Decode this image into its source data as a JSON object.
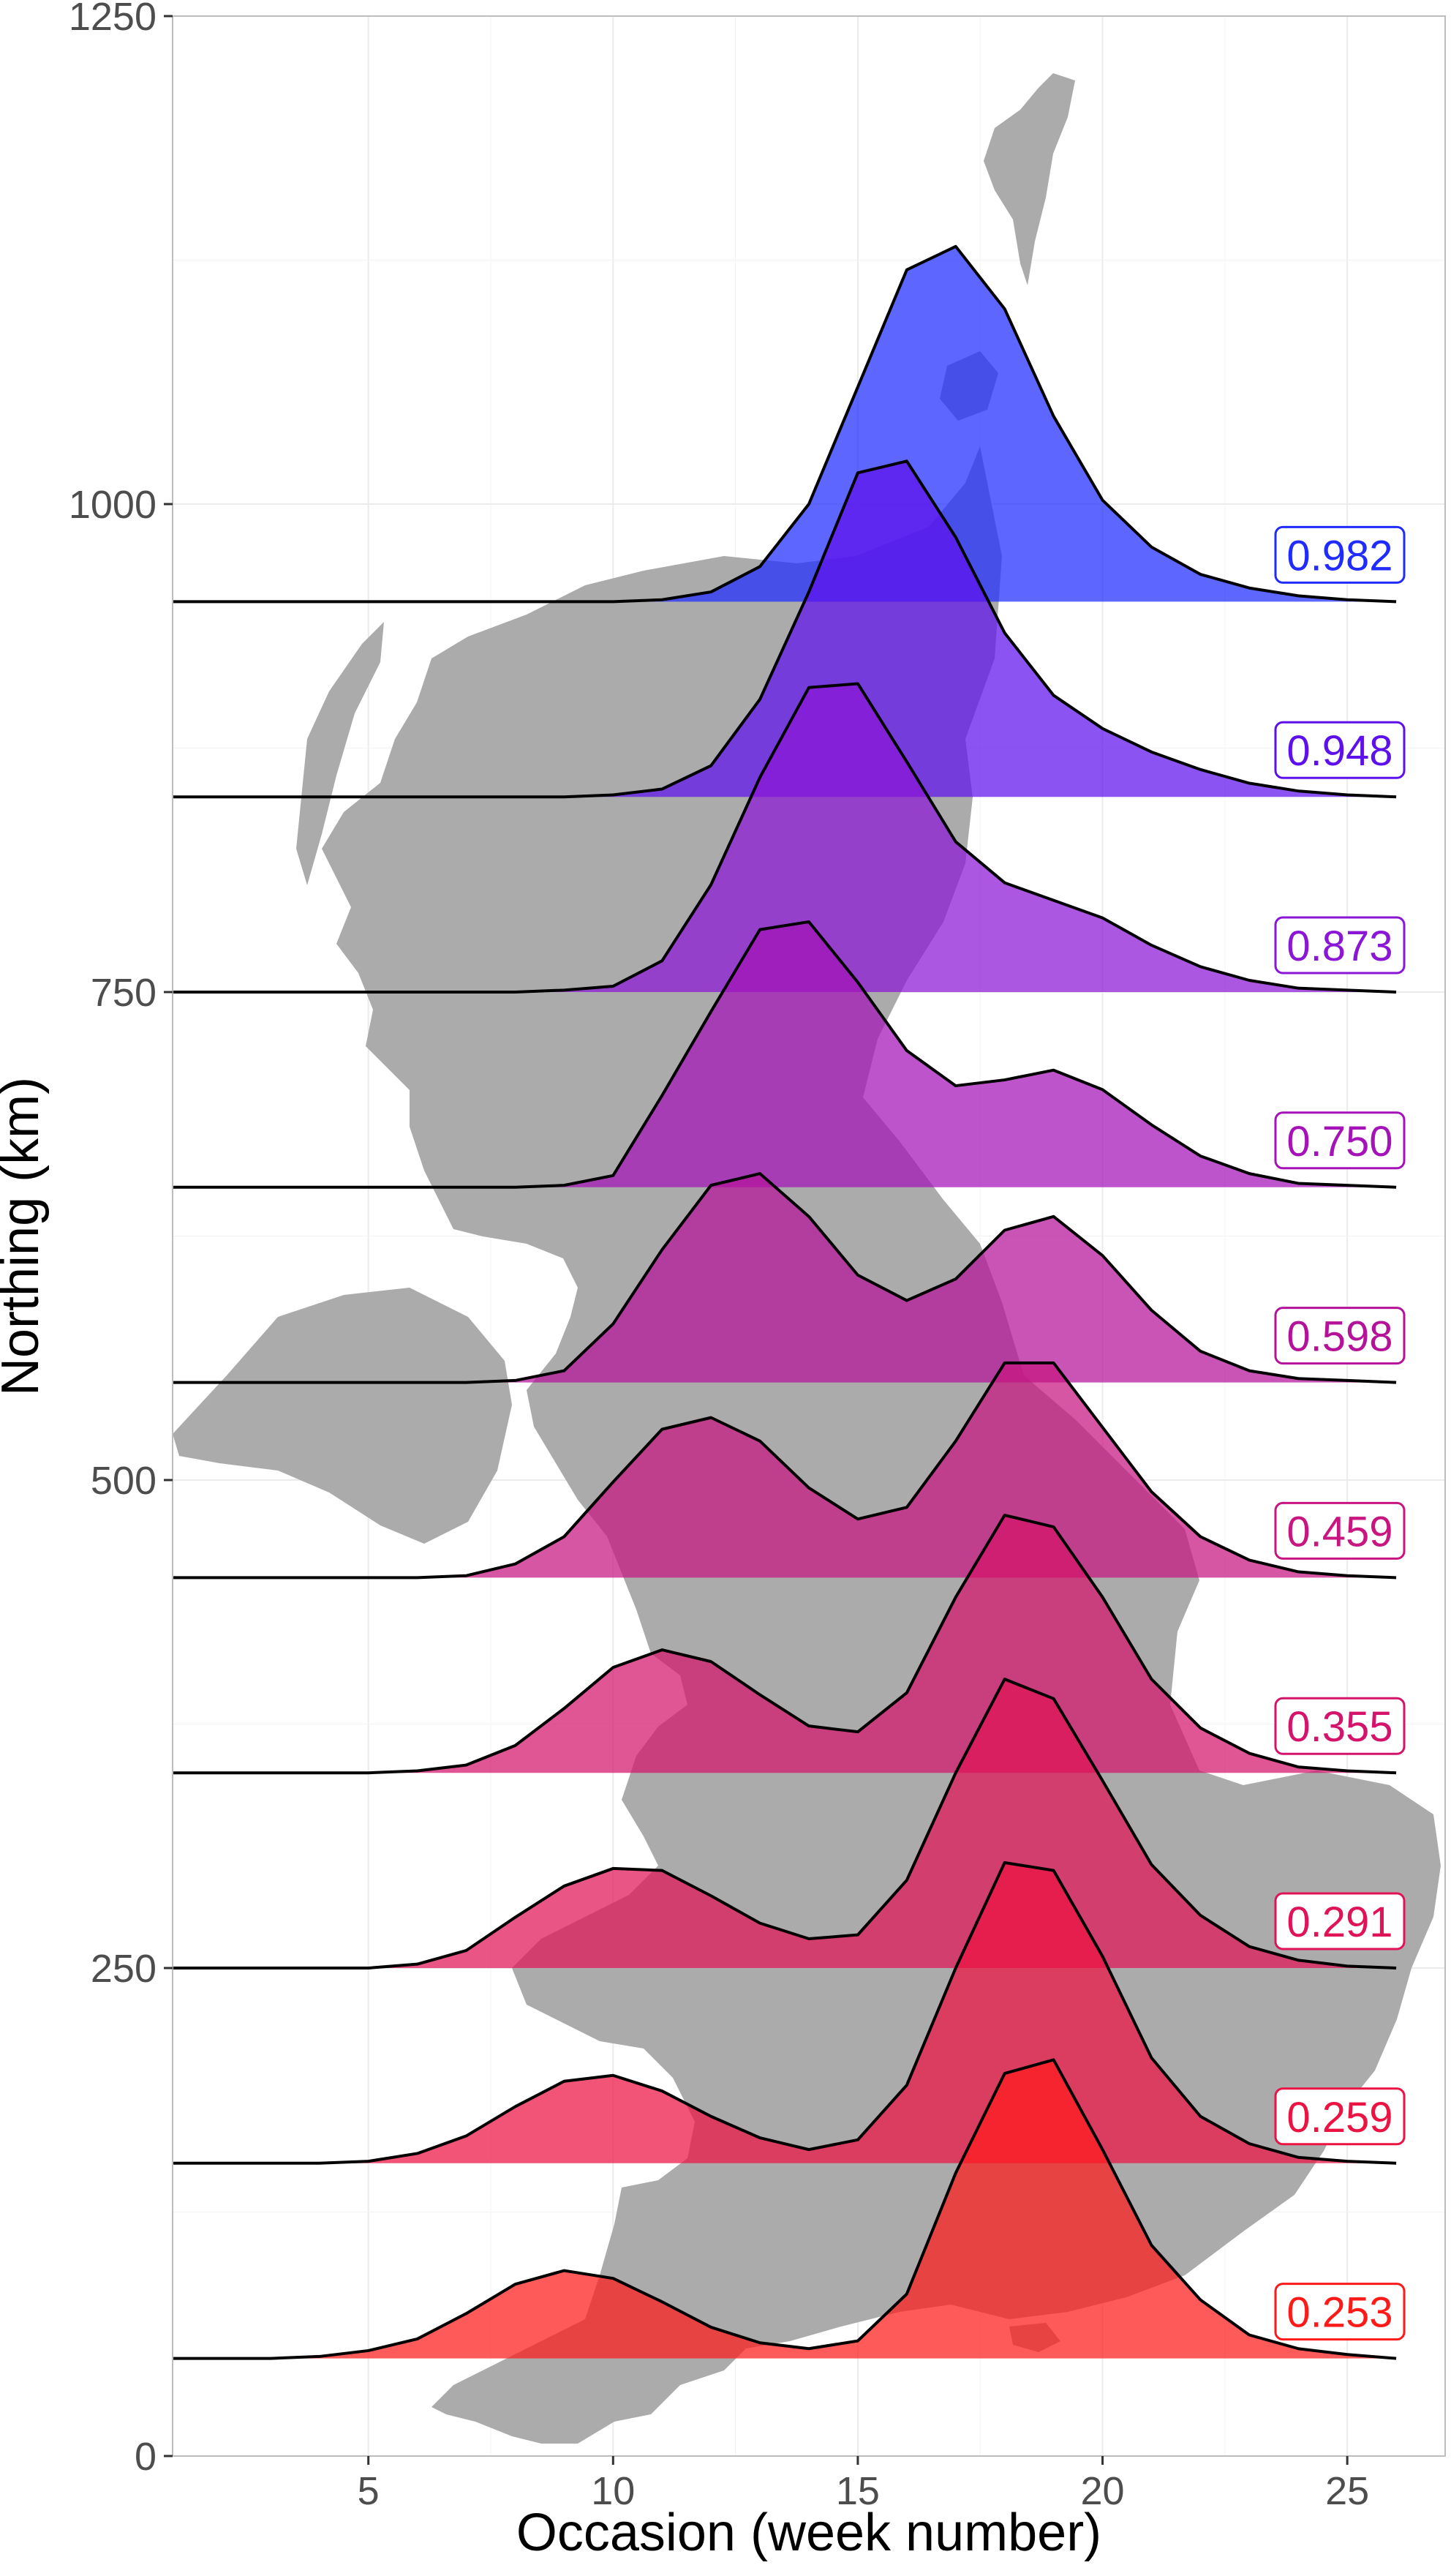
{
  "chart_data": {
    "type": "area",
    "title": "",
    "xlabel": "Occasion (week number)",
    "ylabel": "Northing (km)",
    "xlim": [
      1,
      27
    ],
    "ylim": [
      0,
      1250
    ],
    "x_ticks": [
      5,
      10,
      15,
      20,
      25
    ],
    "y_ticks": [
      0,
      250,
      500,
      750,
      1000,
      1250
    ],
    "grid": true,
    "background": "map of Great Britain (grey silhouette)",
    "x": [
      1,
      2,
      3,
      4,
      5,
      6,
      7,
      8,
      9,
      10,
      11,
      12,
      13,
      14,
      15,
      16,
      17,
      18,
      19,
      20,
      21,
      22,
      23,
      24,
      25,
      26
    ],
    "series": [
      {
        "label": "0.982",
        "color": "#1f2bff",
        "baseline": 950,
        "values": [
          950,
          950,
          950,
          950,
          950,
          950,
          950,
          950,
          950,
          950,
          951,
          955,
          968,
          1000,
          1060,
          1120,
          1132,
          1100,
          1045,
          1002,
          978,
          964,
          957,
          953,
          951,
          950
        ]
      },
      {
        "label": "0.948",
        "color": "#5e10ec",
        "baseline": 850,
        "values": [
          850,
          850,
          850,
          850,
          850,
          850,
          850,
          850,
          850,
          851,
          854,
          866,
          900,
          955,
          1016,
          1022,
          983,
          934,
          902,
          885,
          873,
          864,
          857,
          853,
          851,
          850
        ]
      },
      {
        "label": "0.873",
        "color": "#8a16d6",
        "baseline": 750,
        "values": [
          750,
          750,
          750,
          750,
          750,
          750,
          750,
          750,
          751,
          753,
          766,
          805,
          860,
          906,
          908,
          868,
          827,
          806,
          797,
          788,
          774,
          763,
          756,
          752,
          751,
          750
        ]
      },
      {
        "label": "0.750",
        "color": "#a412b8",
        "baseline": 650,
        "values": [
          650,
          650,
          650,
          650,
          650,
          650,
          650,
          650,
          651,
          656,
          697,
          740,
          782,
          786,
          755,
          720,
          702,
          705,
          710,
          700,
          682,
          666,
          657,
          652,
          651,
          650
        ]
      },
      {
        "label": "0.598",
        "color": "#b5129a",
        "baseline": 550,
        "values": [
          550,
          550,
          550,
          550,
          550,
          550,
          550,
          551,
          556,
          580,
          618,
          651,
          657,
          635,
          605,
          592,
          603,
          628,
          635,
          615,
          587,
          566,
          556,
          552,
          551,
          550
        ]
      },
      {
        "label": "0.459",
        "color": "#c81580",
        "baseline": 450,
        "values": [
          450,
          450,
          450,
          450,
          450,
          450,
          451,
          457,
          471,
          499,
          526,
          532,
          520,
          496,
          480,
          486,
          520,
          560,
          560,
          527,
          494,
          471,
          459,
          453,
          451,
          450
        ]
      },
      {
        "label": "0.355",
        "color": "#d4146a",
        "baseline": 350,
        "values": [
          350,
          350,
          350,
          350,
          350,
          351,
          354,
          364,
          383,
          404,
          413,
          407,
          390,
          374,
          371,
          391,
          440,
          482,
          476,
          440,
          398,
          373,
          360,
          353,
          351,
          350
        ]
      },
      {
        "label": "0.291",
        "color": "#e01356",
        "baseline": 250,
        "values": [
          250,
          250,
          250,
          250,
          250,
          252,
          259,
          276,
          292,
          301,
          300,
          287,
          273,
          265,
          267,
          295,
          350,
          398,
          388,
          346,
          303,
          277,
          261,
          254,
          251,
          250
        ]
      },
      {
        "label": "0.259",
        "color": "#ec1242",
        "baseline": 150,
        "values": [
          150,
          150,
          150,
          150,
          151,
          155,
          164,
          179,
          192,
          195,
          187,
          174,
          163,
          157,
          162,
          190,
          250,
          304,
          300,
          256,
          204,
          174,
          160,
          153,
          151,
          150
        ]
      },
      {
        "label": "0.253",
        "color": "#ff1a1a",
        "baseline": 50,
        "values": [
          50,
          50,
          50,
          51,
          54,
          60,
          73,
          88,
          95,
          91,
          79,
          66,
          58,
          55,
          59,
          83,
          145,
          196,
          203,
          157,
          108,
          80,
          62,
          55,
          52,
          50
        ]
      }
    ]
  }
}
